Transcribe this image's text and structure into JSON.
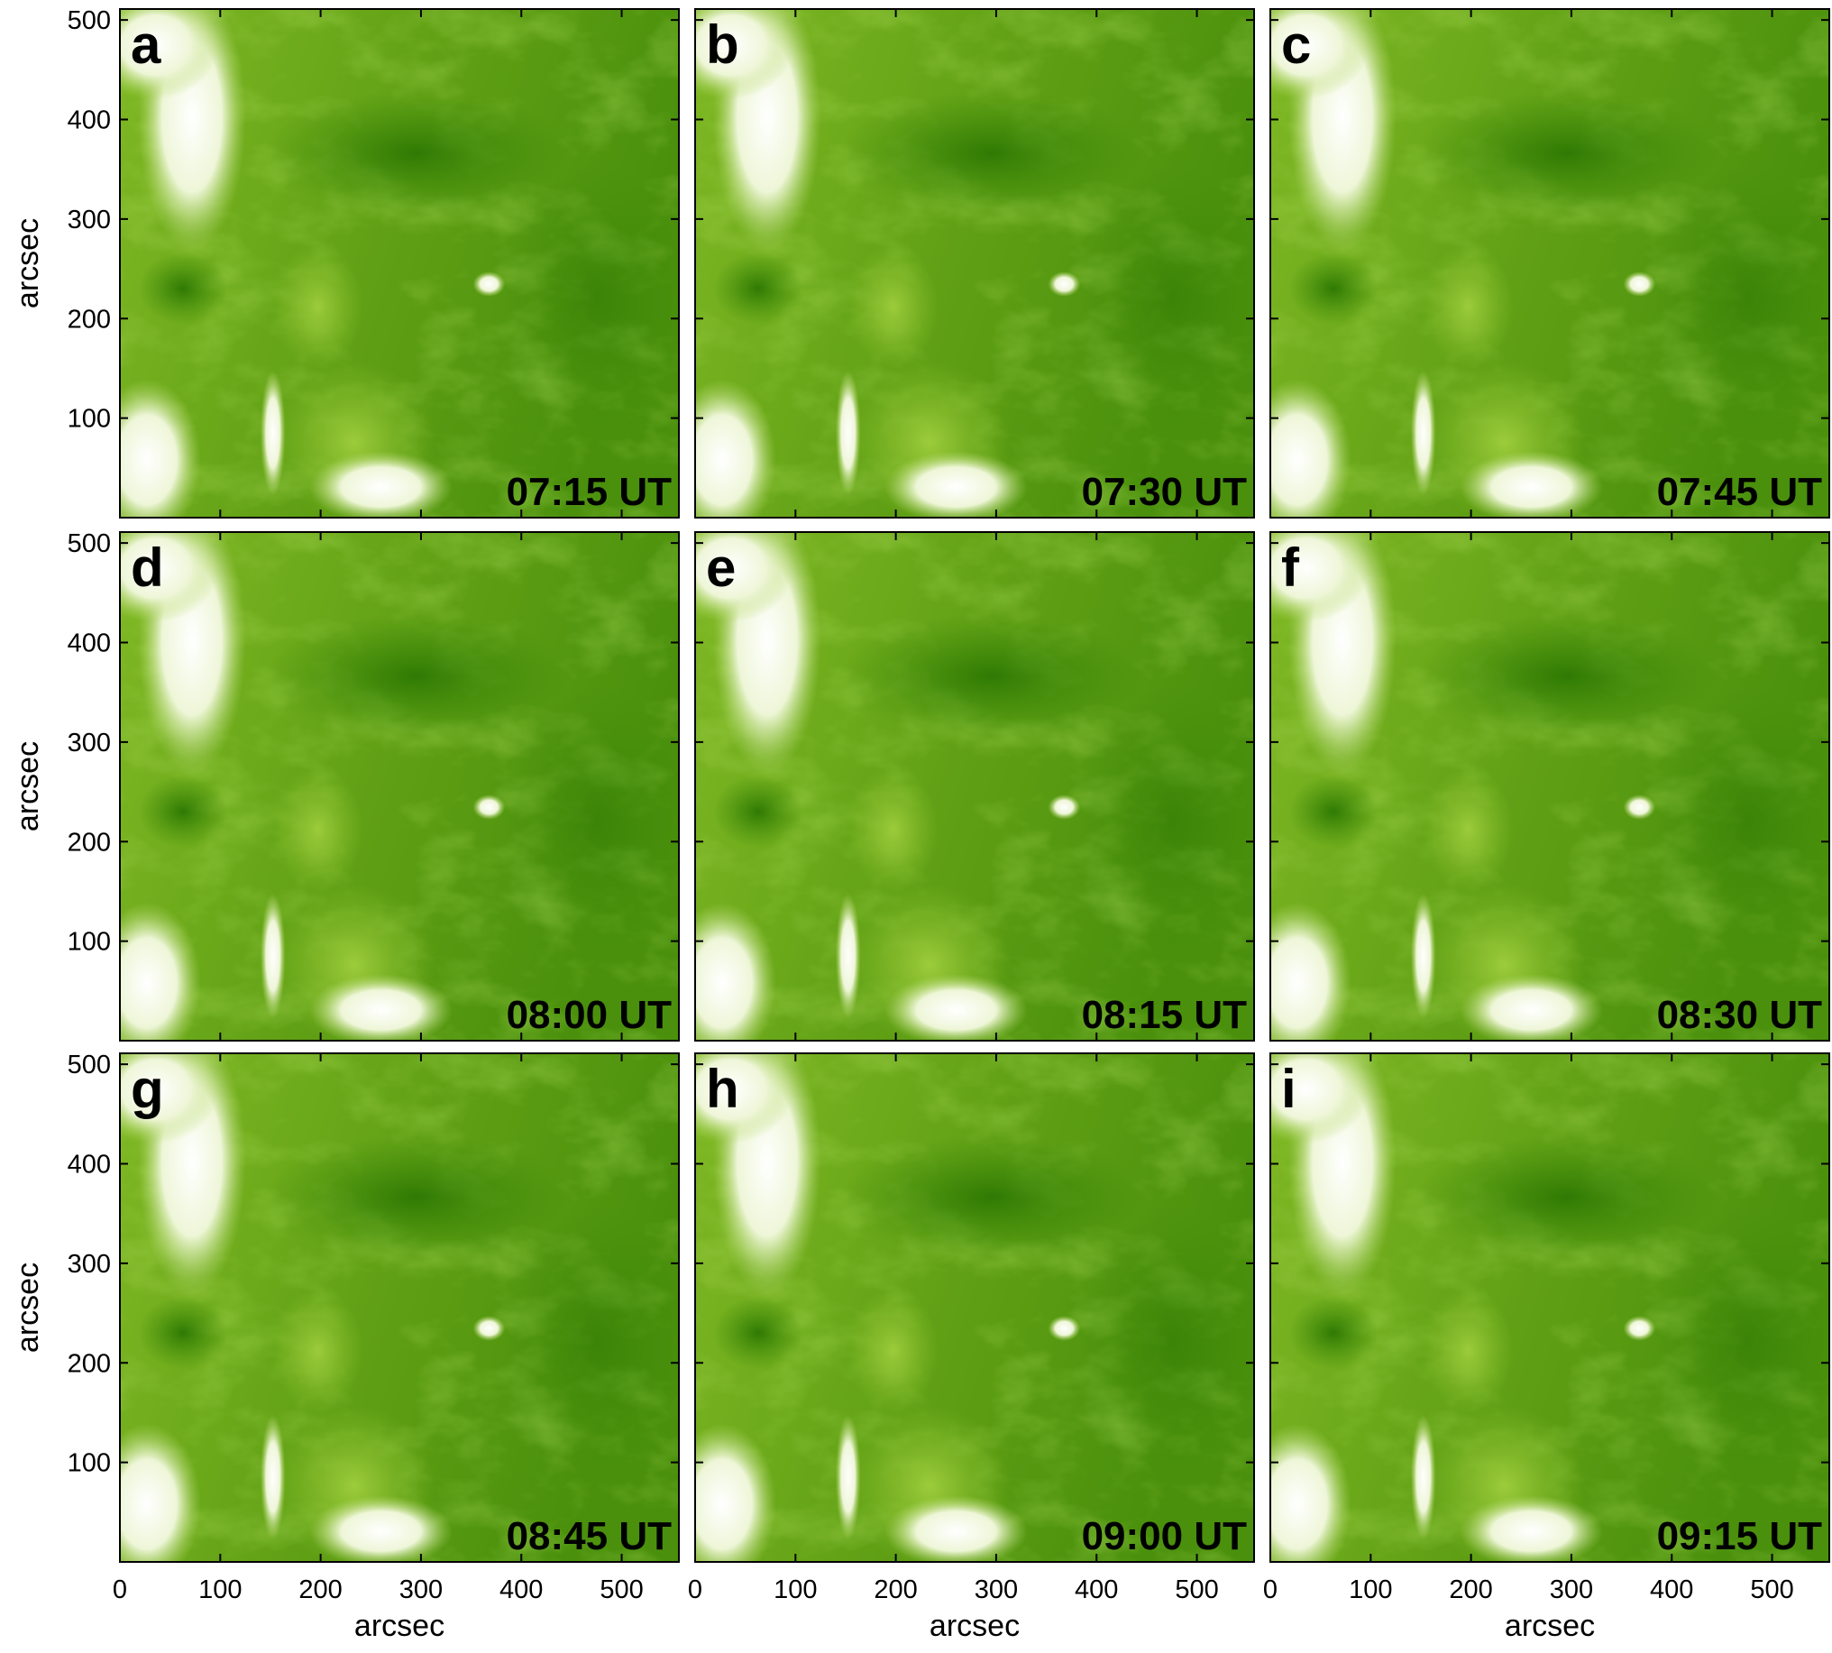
{
  "figure": {
    "panels": [
      {
        "letter": "a",
        "time": "07:15 UT"
      },
      {
        "letter": "b",
        "time": "07:30 UT"
      },
      {
        "letter": "c",
        "time": "07:45 UT"
      },
      {
        "letter": "d",
        "time": "08:00 UT"
      },
      {
        "letter": "e",
        "time": "08:15 UT"
      },
      {
        "letter": "f",
        "time": "08:30 UT"
      },
      {
        "letter": "g",
        "time": "08:45 UT"
      },
      {
        "letter": "h",
        "time": "09:00 UT"
      },
      {
        "letter": "i",
        "time": "09:15 UT"
      }
    ],
    "x_axis": {
      "label": "arcsec",
      "xlim": [
        0,
        557
      ],
      "xticks": [
        0,
        100,
        200,
        300,
        400,
        500
      ]
    },
    "y_axis": {
      "label": "arcsec",
      "ylim": [
        0,
        511
      ],
      "yticks": [
        100,
        200,
        300,
        400,
        500
      ]
    }
  }
}
